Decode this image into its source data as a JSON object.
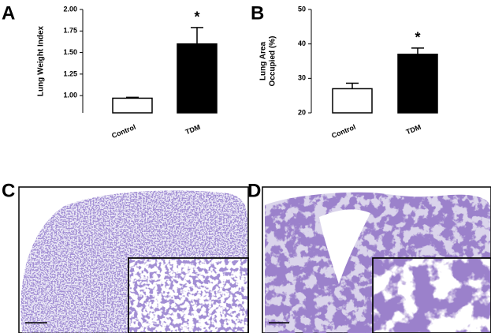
{
  "chart_data": [
    {
      "type": "bar",
      "label": "A",
      "ylabel": [
        "Lung Weight Index"
      ],
      "categories": [
        "Control",
        "TDM"
      ],
      "values": [
        0.97,
        1.6
      ],
      "errors": [
        0.01,
        0.19
      ],
      "colors": [
        "#ffffff",
        "#000000"
      ],
      "annotations": [
        null,
        "*"
      ],
      "ylim": [
        0.8,
        2.0
      ],
      "yticks": [
        {
          "value": 1,
          "label": "1.00"
        },
        {
          "value": 1.25,
          "label": "1.25"
        },
        {
          "value": 1.5,
          "label": "1.50"
        },
        {
          "value": 1.75,
          "label": "1.75"
        },
        {
          "value": 2,
          "label": "2.00"
        }
      ]
    },
    {
      "type": "bar",
      "label": "B",
      "ylabel": [
        "Lung Area",
        "Occupied (%)"
      ],
      "categories": [
        "Control",
        "TDM"
      ],
      "values": [
        27,
        37
      ],
      "errors": [
        1.6,
        1.8
      ],
      "colors": [
        "#ffffff",
        "#000000"
      ],
      "annotations": [
        null,
        "*"
      ],
      "ylim": [
        20,
        50
      ],
      "yticks": [
        20,
        30,
        40,
        50
      ]
    }
  ],
  "images": [
    {
      "label": "C"
    },
    {
      "label": "D"
    }
  ]
}
